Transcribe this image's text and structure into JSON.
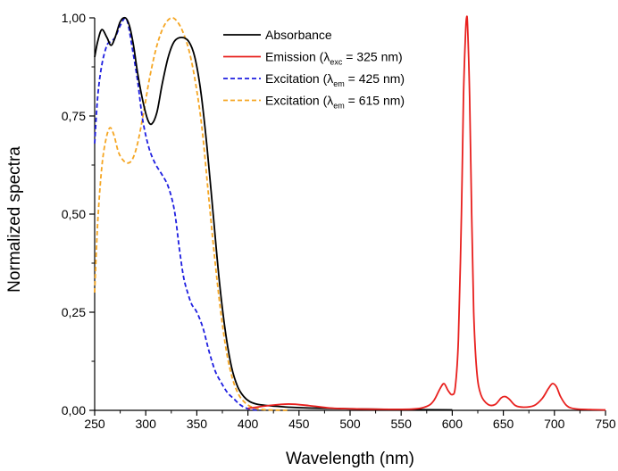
{
  "chart_data": {
    "type": "line",
    "title": "",
    "xlabel": "Wavelength (nm)",
    "ylabel": "Normalized spectra",
    "xlim": [
      250,
      750
    ],
    "ylim": [
      0,
      1
    ],
    "x_ticks": [
      250,
      300,
      350,
      400,
      450,
      500,
      550,
      600,
      650,
      700,
      750
    ],
    "x_tick_labels": [
      "250",
      "300",
      "350",
      "400",
      "450",
      "500",
      "550",
      "600",
      "650",
      "700",
      "750"
    ],
    "y_ticks": [
      0,
      0.25,
      0.5,
      0.75,
      1.0
    ],
    "y_tick_labels": [
      "0,00",
      "0,25",
      "0,50",
      "0,75",
      "1,00"
    ],
    "grid": false,
    "legend_position": "top-right",
    "series": [
      {
        "name": "Absorbance",
        "color": "#000000",
        "dash": "solid",
        "legend": {
          "prefix": "Absorbance",
          "sub": "",
          "suffix": ""
        },
        "points": [
          [
            250,
            0.9
          ],
          [
            253,
            0.94
          ],
          [
            257,
            0.97
          ],
          [
            262,
            0.95
          ],
          [
            266,
            0.93
          ],
          [
            270,
            0.95
          ],
          [
            275,
            0.99
          ],
          [
            280,
            1.0
          ],
          [
            284,
            0.98
          ],
          [
            288,
            0.93
          ],
          [
            292,
            0.86
          ],
          [
            297,
            0.79
          ],
          [
            302,
            0.74
          ],
          [
            306,
            0.73
          ],
          [
            311,
            0.76
          ],
          [
            316,
            0.83
          ],
          [
            322,
            0.9
          ],
          [
            328,
            0.94
          ],
          [
            335,
            0.95
          ],
          [
            342,
            0.94
          ],
          [
            348,
            0.9
          ],
          [
            354,
            0.81
          ],
          [
            360,
            0.67
          ],
          [
            366,
            0.5
          ],
          [
            372,
            0.33
          ],
          [
            378,
            0.2
          ],
          [
            384,
            0.11
          ],
          [
            390,
            0.06
          ],
          [
            396,
            0.035
          ],
          [
            402,
            0.022
          ],
          [
            410,
            0.015
          ],
          [
            420,
            0.012
          ],
          [
            430,
            0.01
          ],
          [
            440,
            0.008
          ],
          [
            460,
            0.006
          ],
          [
            500,
            0.004
          ],
          [
            550,
            0.002
          ],
          [
            600,
            0.001
          ]
        ]
      },
      {
        "name": "Emission (λexc = 325 nm)",
        "color": "#e8201e",
        "dash": "solid",
        "legend": {
          "prefix": "Emission (λ",
          "sub": "exc",
          "suffix": " = 325 nm)"
        },
        "points": [
          [
            400,
            0.005
          ],
          [
            420,
            0.012
          ],
          [
            440,
            0.016
          ],
          [
            460,
            0.012
          ],
          [
            480,
            0.006
          ],
          [
            500,
            0.004
          ],
          [
            520,
            0.003
          ],
          [
            560,
            0.003
          ],
          [
            575,
            0.01
          ],
          [
            582,
            0.025
          ],
          [
            588,
            0.055
          ],
          [
            592,
            0.068
          ],
          [
            596,
            0.05
          ],
          [
            600,
            0.04
          ],
          [
            603,
            0.06
          ],
          [
            606,
            0.18
          ],
          [
            609,
            0.5
          ],
          [
            611,
            0.8
          ],
          [
            613,
            0.96
          ],
          [
            614,
            1.0
          ],
          [
            615,
            0.98
          ],
          [
            617,
            0.8
          ],
          [
            619,
            0.5
          ],
          [
            621,
            0.25
          ],
          [
            624,
            0.1
          ],
          [
            628,
            0.04
          ],
          [
            635,
            0.015
          ],
          [
            642,
            0.015
          ],
          [
            648,
            0.032
          ],
          [
            652,
            0.035
          ],
          [
            656,
            0.028
          ],
          [
            662,
            0.012
          ],
          [
            670,
            0.008
          ],
          [
            680,
            0.012
          ],
          [
            688,
            0.03
          ],
          [
            694,
            0.055
          ],
          [
            698,
            0.068
          ],
          [
            702,
            0.06
          ],
          [
            706,
            0.035
          ],
          [
            712,
            0.012
          ],
          [
            720,
            0.004
          ],
          [
            735,
            0.002
          ],
          [
            750,
            0.001
          ]
        ]
      },
      {
        "name": "Excitation (λem = 425 nm)",
        "color": "#1f1fe0",
        "dash": "dashed",
        "legend": {
          "prefix": "Excitation (λ",
          "sub": "em",
          "suffix": " = 425 nm)"
        },
        "points": [
          [
            250,
            0.68
          ],
          [
            253,
            0.8
          ],
          [
            257,
            0.88
          ],
          [
            262,
            0.93
          ],
          [
            266,
            0.94
          ],
          [
            270,
            0.95
          ],
          [
            275,
            0.98
          ],
          [
            280,
            1.0
          ],
          [
            283,
            0.98
          ],
          [
            287,
            0.92
          ],
          [
            292,
            0.84
          ],
          [
            297,
            0.74
          ],
          [
            303,
            0.67
          ],
          [
            309,
            0.63
          ],
          [
            316,
            0.6
          ],
          [
            322,
            0.57
          ],
          [
            328,
            0.51
          ],
          [
            333,
            0.41
          ],
          [
            337,
            0.34
          ],
          [
            341,
            0.3
          ],
          [
            345,
            0.27
          ],
          [
            350,
            0.25
          ],
          [
            356,
            0.21
          ],
          [
            362,
            0.15
          ],
          [
            368,
            0.1
          ],
          [
            374,
            0.07
          ],
          [
            380,
            0.045
          ],
          [
            386,
            0.03
          ],
          [
            392,
            0.015
          ],
          [
            398,
            0.006
          ],
          [
            404,
            0.002
          ],
          [
            412,
            0.0
          ]
        ]
      },
      {
        "name": "Excitation (λem = 615 nm)",
        "color": "#f5a623",
        "dash": "dashed",
        "legend": {
          "prefix": "Excitation (λ",
          "sub": "em",
          "suffix": " = 615 nm)"
        },
        "points": [
          [
            250,
            0.3
          ],
          [
            253,
            0.48
          ],
          [
            257,
            0.62
          ],
          [
            261,
            0.69
          ],
          [
            265,
            0.72
          ],
          [
            269,
            0.7
          ],
          [
            273,
            0.66
          ],
          [
            277,
            0.64
          ],
          [
            282,
            0.63
          ],
          [
            287,
            0.64
          ],
          [
            292,
            0.68
          ],
          [
            298,
            0.76
          ],
          [
            304,
            0.85
          ],
          [
            311,
            0.93
          ],
          [
            318,
            0.98
          ],
          [
            325,
            1.0
          ],
          [
            331,
            0.99
          ],
          [
            337,
            0.96
          ],
          [
            343,
            0.91
          ],
          [
            349,
            0.83
          ],
          [
            355,
            0.72
          ],
          [
            361,
            0.56
          ],
          [
            367,
            0.4
          ],
          [
            373,
            0.26
          ],
          [
            379,
            0.15
          ],
          [
            385,
            0.08
          ],
          [
            391,
            0.04
          ],
          [
            397,
            0.02
          ],
          [
            404,
            0.008
          ],
          [
            412,
            0.003
          ],
          [
            420,
            0.001
          ],
          [
            440,
            0.0
          ]
        ]
      }
    ]
  }
}
